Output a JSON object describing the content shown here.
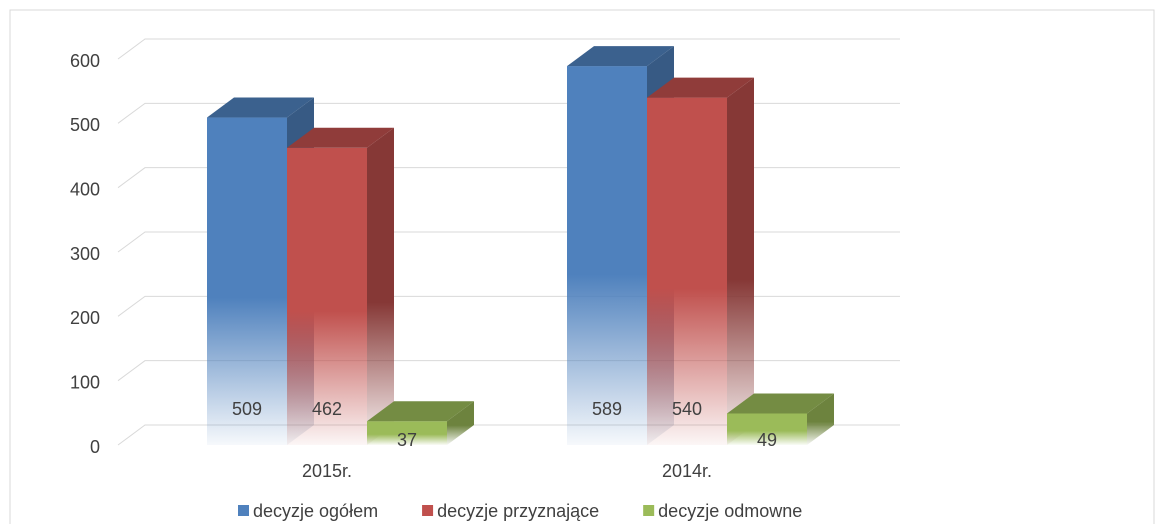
{
  "chart_data": {
    "type": "bar3d",
    "categories": [
      "2015r.",
      "2014r."
    ],
    "series": [
      {
        "name": "decyzje ogółem",
        "color": "#4f81bd",
        "values": [
          509,
          589
        ]
      },
      {
        "name": "decyzje przyznające",
        "color": "#c0504d",
        "values": [
          462,
          540
        ]
      },
      {
        "name": "decyzje odmowne",
        "color": "#9bbb59",
        "values": [
          37,
          49
        ]
      }
    ],
    "ylim": [
      0,
      600
    ],
    "yticks": [
      0,
      100,
      200,
      300,
      400,
      500,
      600
    ],
    "grid": true,
    "legend": "bottom"
  }
}
